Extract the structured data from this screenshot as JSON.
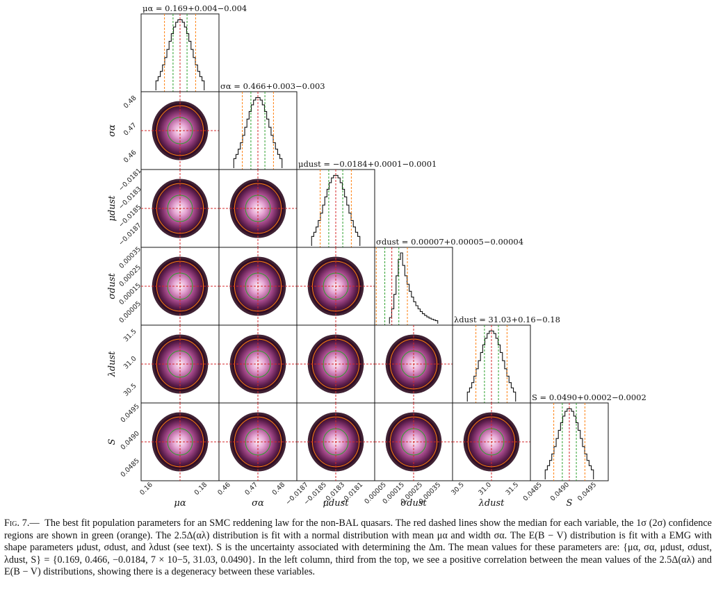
{
  "figure": {
    "parameters": [
      {
        "key": "mu_alpha",
        "axis_label": "μα",
        "tick_labels": [
          "0.16",
          "0.18"
        ],
        "hist_title": "μα = 0.169+0.004−0.004"
      },
      {
        "key": "sigma_alpha",
        "axis_label": "σα",
        "tick_labels": [
          "0.46",
          "0.47",
          "0.48"
        ],
        "hist_title": "σα = 0.466+0.003−0.003"
      },
      {
        "key": "mu_dust",
        "axis_label": "μdust",
        "tick_labels": [
          "−0.0187",
          "−0.0185",
          "−0.0183",
          "−0.0181"
        ],
        "hist_title": "μdust = −0.0184+0.0001−0.0001"
      },
      {
        "key": "sigma_dust",
        "axis_label": "σdust",
        "tick_labels": [
          "0.00005",
          "0.00015",
          "0.00025",
          "0.00035"
        ],
        "hist_title": "σdust = 0.00007+0.00005−0.00004"
      },
      {
        "key": "lambda_dust",
        "axis_label": "λdust",
        "tick_labels": [
          "30.5",
          "31.0",
          "31.5"
        ],
        "hist_title": "λdust = 31.03+0.16−0.18"
      },
      {
        "key": "S",
        "axis_label": "S",
        "tick_labels": [
          "0.0485",
          "0.0490",
          "0.0495"
        ],
        "hist_title": "S = 0.0490+0.0002−0.0002"
      }
    ],
    "row_tick_labels": [
      [],
      [
        "0.46",
        "0.47",
        "0.48"
      ],
      [
        "−0.0187",
        "−0.0185",
        "−0.0183",
        "−0.0181"
      ],
      [
        "0.00005",
        "0.00015",
        "0.00025",
        "0.00035"
      ],
      [
        "30.5",
        "31.0",
        "31.5"
      ],
      [
        "0.0485",
        "0.0490",
        "0.0495"
      ]
    ],
    "colors": {
      "median_line": "#d62728",
      "sigma1_line": "#2ca02c",
      "sigma2_line": "#ff7f0e",
      "density_low": "#2b0a1e",
      "density_mid": "#a64a8c",
      "density_high": "#fbeef6",
      "hist_line": "#111111"
    }
  },
  "caption": {
    "label": "Fig. 7.—",
    "text": "The best fit population parameters for an SMC reddening law for the non-BAL quasars. The red dashed lines show the median for each variable, the 1σ (2σ) confidence regions are shown in green (orange). The 2.5Δ(αλ) distribution is fit with a normal distribution with mean μα and width σα. The E(B − V) distribution is fit with a EMG with shape parameters μdust, σdust, and λdust (see text). S is the uncertainty associated with determining the Δm. The mean values for these parameters are: {μα, σα, μdust, σdust, λdust, S} = {0.169, 0.466, −0.0184, 7 × 10−5, 31.03, 0.0490}. In the left column, third from the top, we see a positive correlation between the mean values of the 2.5Δ(αλ) and E(B − V) distributions, showing there is a degeneracy between these variables."
  }
}
